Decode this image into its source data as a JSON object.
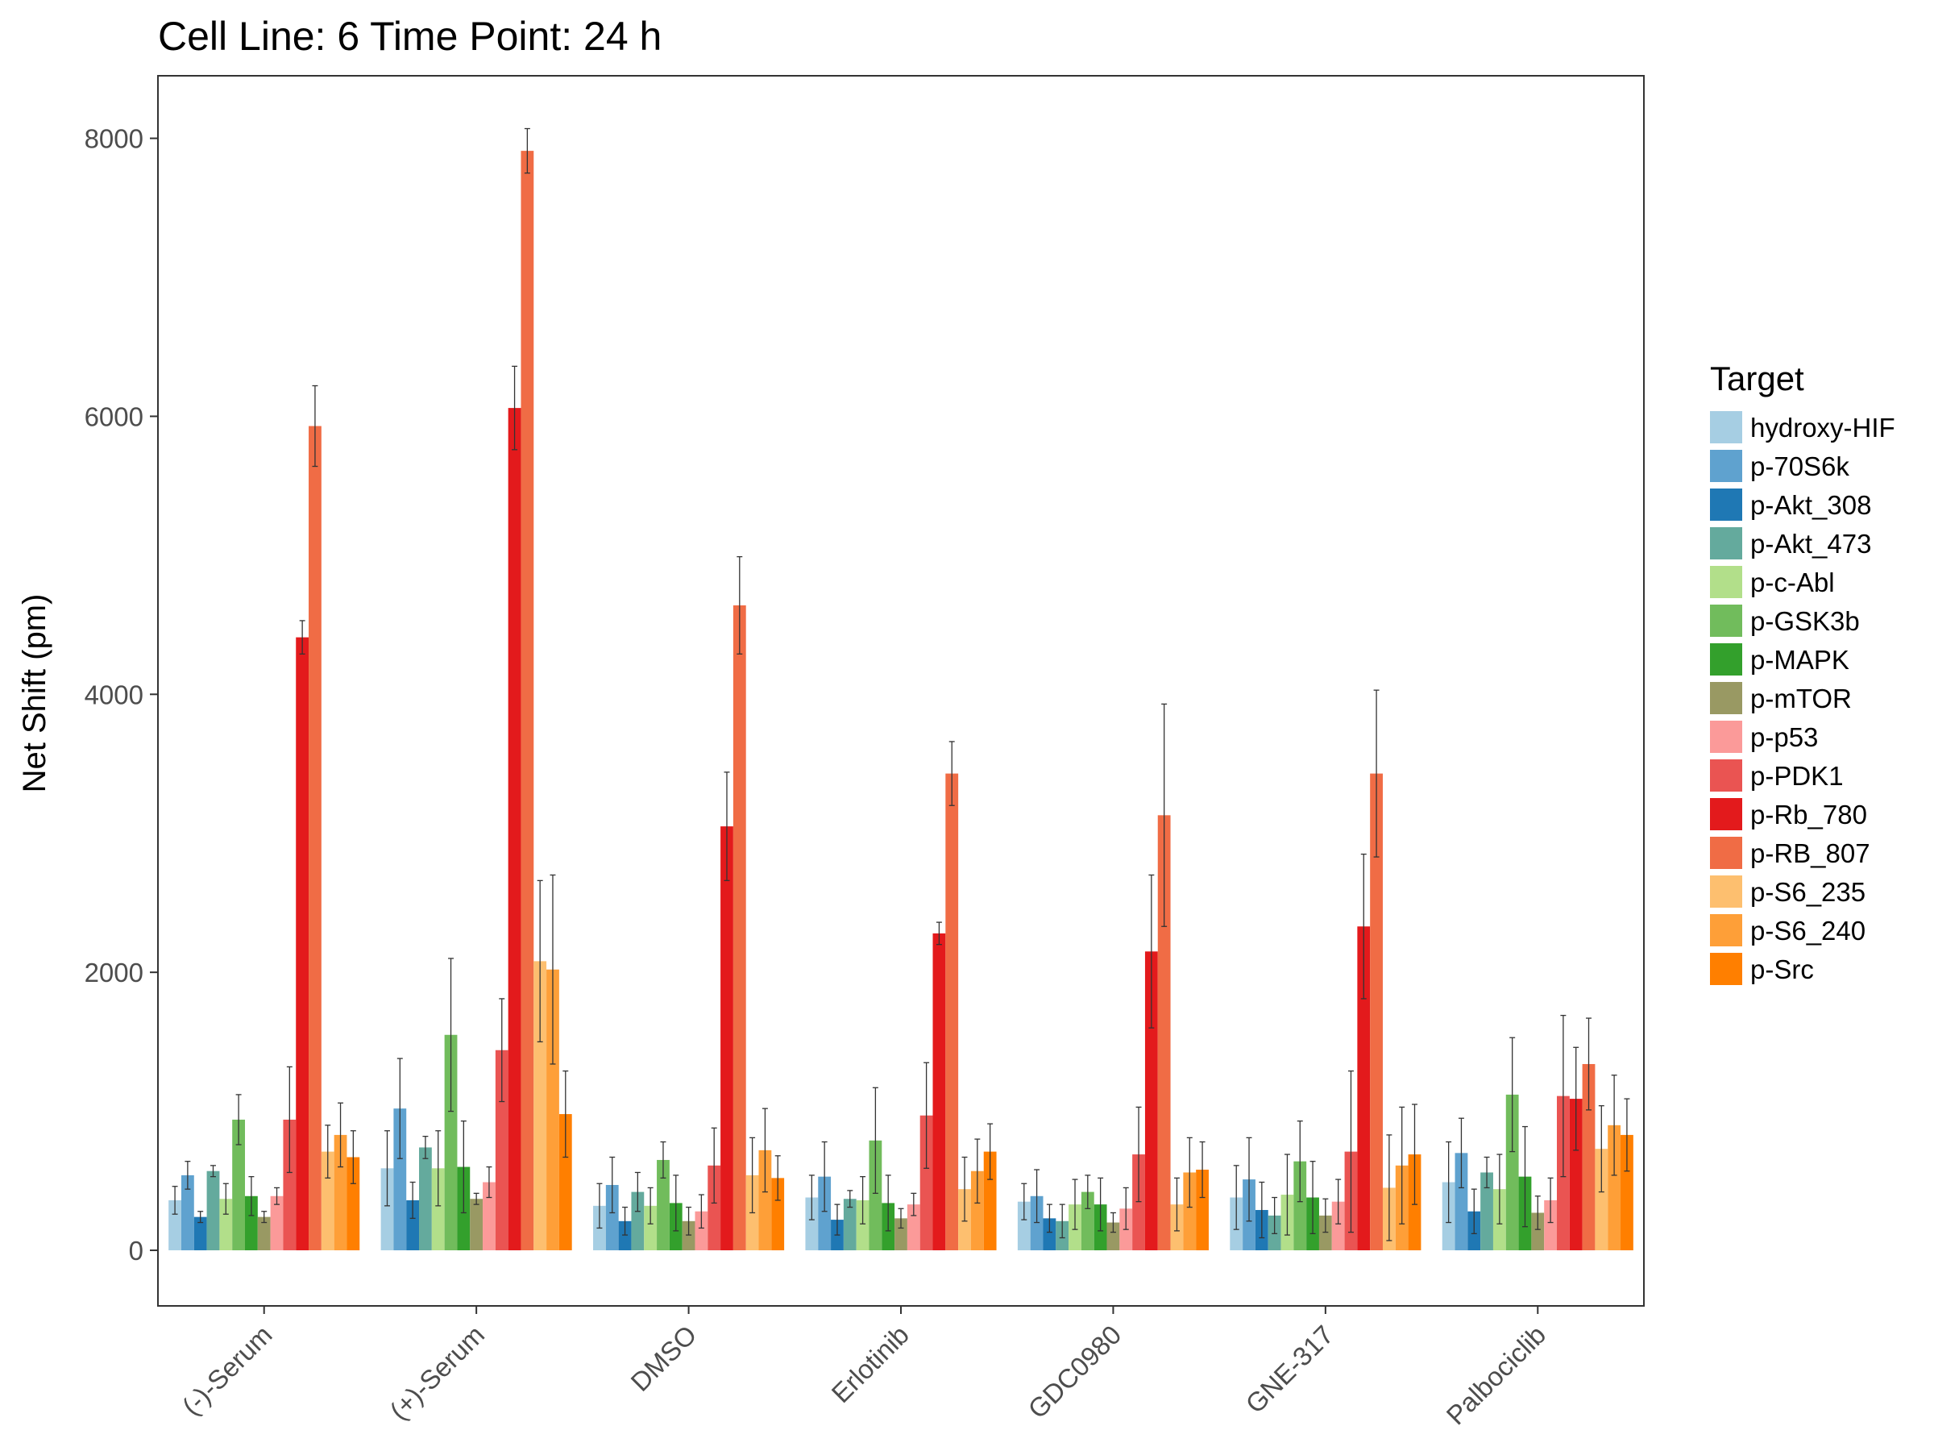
{
  "chart_data": {
    "type": "bar",
    "title": "Cell Line: 6 Time Point: 24 h",
    "xlabel": "",
    "ylabel": "Net Shift (pm)",
    "ylim": [
      -400,
      8450
    ],
    "yticks": [
      0,
      2000,
      4000,
      6000,
      8000
    ],
    "grid": false,
    "legend": {
      "title": "Target",
      "placement": "right"
    },
    "categories": [
      "(-)-Serum",
      "(+)-Serum",
      "DMSO",
      "Erlotinib",
      "GDC0980",
      "GNE-317",
      "Palbociclib"
    ],
    "series": [
      {
        "name": "hydroxy-HIF",
        "color": "#a6cee3",
        "values": [
          360,
          590,
          320,
          380,
          350,
          380,
          490
        ],
        "errors": [
          100,
          270,
          160,
          160,
          130,
          230,
          290
        ]
      },
      {
        "name": "p-70S6k",
        "color": "#5fa2cf",
        "values": [
          540,
          1020,
          470,
          530,
          390,
          510,
          700
        ],
        "errors": [
          100,
          360,
          200,
          250,
          190,
          300,
          250
        ]
      },
      {
        "name": "p-Akt_308",
        "color": "#1f78b4",
        "values": [
          240,
          360,
          210,
          220,
          230,
          290,
          280
        ],
        "errors": [
          40,
          130,
          100,
          110,
          100,
          200,
          160
        ]
      },
      {
        "name": "p-Akt_473",
        "color": "#64aa9d",
        "values": [
          570,
          740,
          420,
          370,
          210,
          250,
          560
        ],
        "errors": [
          40,
          80,
          140,
          60,
          120,
          130,
          110
        ]
      },
      {
        "name": "p-c-Abl",
        "color": "#b2df8a",
        "values": [
          370,
          590,
          320,
          360,
          330,
          400,
          440
        ],
        "errors": [
          110,
          270,
          130,
          170,
          180,
          290,
          250
        ]
      },
      {
        "name": "p-GSK3b",
        "color": "#71bc5c",
        "values": [
          940,
          1550,
          650,
          790,
          420,
          640,
          1120
        ],
        "errors": [
          180,
          550,
          130,
          380,
          120,
          290,
          410
        ]
      },
      {
        "name": "p-MAPK",
        "color": "#33a02c",
        "values": [
          390,
          600,
          340,
          340,
          330,
          380,
          530
        ],
        "errors": [
          140,
          330,
          200,
          200,
          190,
          260,
          360
        ]
      },
      {
        "name": "p-mTOR",
        "color": "#999963",
        "values": [
          240,
          370,
          210,
          230,
          200,
          250,
          270
        ],
        "errors": [
          40,
          40,
          100,
          70,
          70,
          120,
          120
        ]
      },
      {
        "name": "p-p53",
        "color": "#fb9a99",
        "values": [
          390,
          490,
          280,
          330,
          300,
          350,
          360
        ],
        "errors": [
          60,
          110,
          120,
          80,
          150,
          160,
          160
        ]
      },
      {
        "name": "p-PDK1",
        "color": "#ea5452",
        "values": [
          940,
          1440,
          610,
          970,
          690,
          710,
          1110
        ],
        "errors": [
          380,
          370,
          270,
          380,
          340,
          580,
          580
        ]
      },
      {
        "name": "p-Rb_780",
        "color": "#e31a1c",
        "values": [
          4410,
          6060,
          3050,
          2280,
          2150,
          2330,
          1090
        ],
        "errors": [
          120,
          300,
          390,
          80,
          550,
          520,
          370
        ]
      },
      {
        "name": "p-RB_807",
        "color": "#f06c45",
        "values": [
          5930,
          7910,
          4640,
          3430,
          3130,
          3430,
          1340
        ],
        "errors": [
          290,
          160,
          350,
          230,
          800,
          600,
          330
        ]
      },
      {
        "name": "p-S6_235",
        "color": "#fdbf6f",
        "values": [
          710,
          2080,
          540,
          440,
          330,
          450,
          730
        ],
        "errors": [
          190,
          580,
          270,
          230,
          190,
          380,
          310
        ]
      },
      {
        "name": "p-S6_240",
        "color": "#fe9f38",
        "values": [
          830,
          2020,
          720,
          570,
          560,
          610,
          900
        ],
        "errors": [
          230,
          680,
          300,
          230,
          250,
          420,
          360
        ]
      },
      {
        "name": "p-Src",
        "color": "#ff7f00",
        "values": [
          670,
          980,
          520,
          710,
          580,
          690,
          830
        ],
        "errors": [
          190,
          310,
          160,
          200,
          200,
          360,
          260
        ]
      }
    ]
  }
}
